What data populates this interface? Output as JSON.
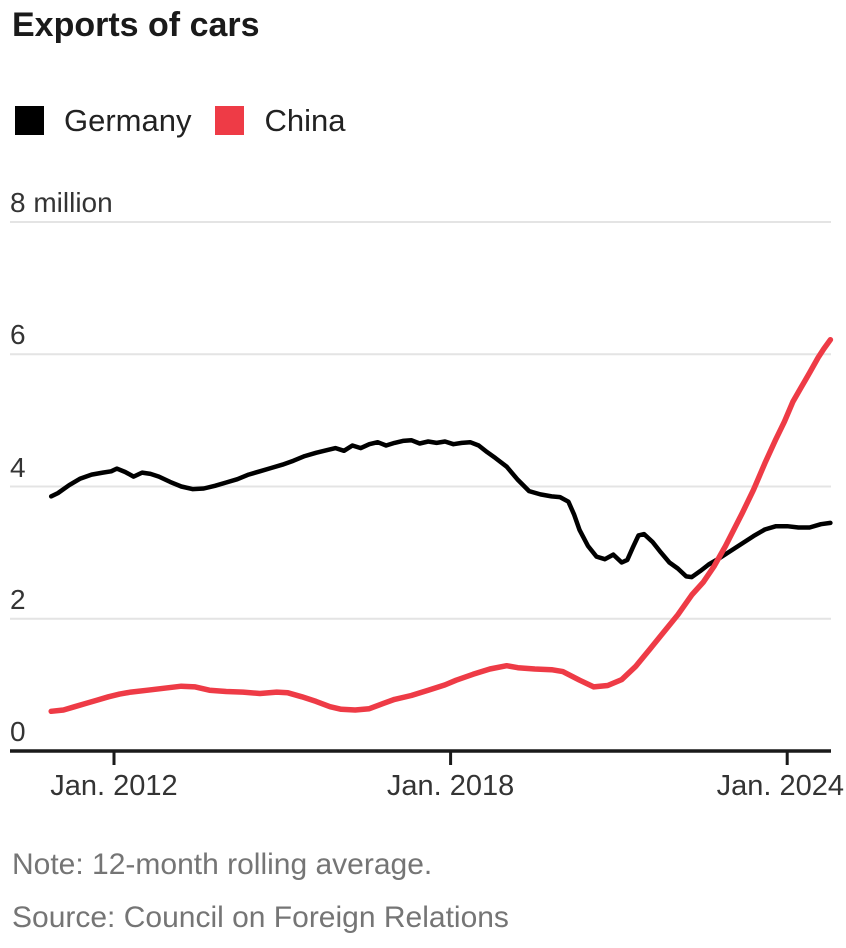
{
  "title": "Exports of cars",
  "legend": {
    "items": [
      {
        "label": "Germany",
        "color": "#000000"
      },
      {
        "label": "China",
        "color": "#ee3b46"
      }
    ]
  },
  "chart_data": {
    "type": "line",
    "title": "Exports of cars",
    "ylabel": "million",
    "ylim": [
      0,
      8
    ],
    "grid": true,
    "legend_position": "top-left",
    "note": "12-month rolling average",
    "y_ticks": [
      {
        "value": 8,
        "label": "8 million"
      },
      {
        "value": 6,
        "label": "6"
      },
      {
        "value": 4,
        "label": "4"
      },
      {
        "value": 2,
        "label": "2"
      },
      {
        "value": 0,
        "label": "0"
      }
    ],
    "x_ticks": [
      {
        "year": 2012,
        "label": "Jan. 2012",
        "align": "center"
      },
      {
        "year": 2018,
        "label": "Jan. 2018",
        "align": "center"
      },
      {
        "year": 2024,
        "label": "Jan. 2024",
        "align": "right"
      }
    ],
    "x_unit": "year (fractional, Jan = .0)",
    "series": [
      {
        "name": "Germany",
        "color": "#000000",
        "stroke_width": 4.5,
        "points": [
          [
            2010.88,
            3.85
          ],
          [
            2011.0,
            3.9
          ],
          [
            2011.2,
            4.02
          ],
          [
            2011.4,
            4.12
          ],
          [
            2011.6,
            4.18
          ],
          [
            2011.8,
            4.21
          ],
          [
            2011.95,
            4.23
          ],
          [
            2012.05,
            4.27
          ],
          [
            2012.2,
            4.22
          ],
          [
            2012.35,
            4.15
          ],
          [
            2012.5,
            4.21
          ],
          [
            2012.65,
            4.19
          ],
          [
            2012.8,
            4.15
          ],
          [
            2013.0,
            4.07
          ],
          [
            2013.2,
            4.0
          ],
          [
            2013.4,
            3.96
          ],
          [
            2013.6,
            3.97
          ],
          [
            2013.8,
            4.01
          ],
          [
            2014.0,
            4.06
          ],
          [
            2014.2,
            4.11
          ],
          [
            2014.4,
            4.18
          ],
          [
            2014.6,
            4.23
          ],
          [
            2014.8,
            4.28
          ],
          [
            2015.0,
            4.33
          ],
          [
            2015.2,
            4.39
          ],
          [
            2015.4,
            4.46
          ],
          [
            2015.6,
            4.51
          ],
          [
            2015.8,
            4.55
          ],
          [
            2015.95,
            4.58
          ],
          [
            2016.1,
            4.54
          ],
          [
            2016.25,
            4.62
          ],
          [
            2016.4,
            4.58
          ],
          [
            2016.55,
            4.64
          ],
          [
            2016.7,
            4.67
          ],
          [
            2016.85,
            4.62
          ],
          [
            2017.0,
            4.66
          ],
          [
            2017.15,
            4.69
          ],
          [
            2017.3,
            4.7
          ],
          [
            2017.45,
            4.65
          ],
          [
            2017.6,
            4.68
          ],
          [
            2017.75,
            4.66
          ],
          [
            2017.9,
            4.68
          ],
          [
            2018.05,
            4.64
          ],
          [
            2018.2,
            4.66
          ],
          [
            2018.35,
            4.67
          ],
          [
            2018.5,
            4.62
          ],
          [
            2018.65,
            4.52
          ],
          [
            2018.8,
            4.43
          ],
          [
            2019.0,
            4.3
          ],
          [
            2019.2,
            4.1
          ],
          [
            2019.4,
            3.93
          ],
          [
            2019.6,
            3.88
          ],
          [
            2019.8,
            3.85
          ],
          [
            2019.95,
            3.84
          ],
          [
            2020.1,
            3.77
          ],
          [
            2020.2,
            3.58
          ],
          [
            2020.3,
            3.34
          ],
          [
            2020.45,
            3.1
          ],
          [
            2020.6,
            2.94
          ],
          [
            2020.75,
            2.9
          ],
          [
            2020.9,
            2.97
          ],
          [
            2021.05,
            2.85
          ],
          [
            2021.15,
            2.89
          ],
          [
            2021.25,
            3.08
          ],
          [
            2021.35,
            3.26
          ],
          [
            2021.45,
            3.28
          ],
          [
            2021.6,
            3.16
          ],
          [
            2021.75,
            3.0
          ],
          [
            2021.9,
            2.85
          ],
          [
            2022.05,
            2.76
          ],
          [
            2022.2,
            2.64
          ],
          [
            2022.3,
            2.63
          ],
          [
            2022.45,
            2.72
          ],
          [
            2022.6,
            2.82
          ],
          [
            2022.8,
            2.92
          ],
          [
            2023.0,
            3.03
          ],
          [
            2023.2,
            3.14
          ],
          [
            2023.4,
            3.25
          ],
          [
            2023.6,
            3.35
          ],
          [
            2023.8,
            3.4
          ],
          [
            2024.0,
            3.4
          ],
          [
            2024.2,
            3.38
          ],
          [
            2024.4,
            3.38
          ],
          [
            2024.6,
            3.43
          ],
          [
            2024.77,
            3.45
          ]
        ]
      },
      {
        "name": "China",
        "color": "#ee3b46",
        "stroke_width": 5.5,
        "points": [
          [
            2010.88,
            0.6
          ],
          [
            2011.1,
            0.62
          ],
          [
            2011.3,
            0.67
          ],
          [
            2011.5,
            0.72
          ],
          [
            2011.7,
            0.77
          ],
          [
            2011.9,
            0.82
          ],
          [
            2012.1,
            0.86
          ],
          [
            2012.3,
            0.89
          ],
          [
            2012.6,
            0.92
          ],
          [
            2012.9,
            0.95
          ],
          [
            2013.2,
            0.98
          ],
          [
            2013.45,
            0.97
          ],
          [
            2013.7,
            0.92
          ],
          [
            2014.0,
            0.9
          ],
          [
            2014.3,
            0.89
          ],
          [
            2014.6,
            0.87
          ],
          [
            2014.9,
            0.89
          ],
          [
            2015.1,
            0.88
          ],
          [
            2015.35,
            0.82
          ],
          [
            2015.6,
            0.75
          ],
          [
            2015.85,
            0.67
          ],
          [
            2016.05,
            0.63
          ],
          [
            2016.3,
            0.62
          ],
          [
            2016.55,
            0.64
          ],
          [
            2016.8,
            0.72
          ],
          [
            2017.0,
            0.78
          ],
          [
            2017.3,
            0.84
          ],
          [
            2017.6,
            0.92
          ],
          [
            2017.9,
            1.0
          ],
          [
            2018.1,
            1.07
          ],
          [
            2018.4,
            1.16
          ],
          [
            2018.7,
            1.24
          ],
          [
            2019.0,
            1.29
          ],
          [
            2019.2,
            1.26
          ],
          [
            2019.5,
            1.24
          ],
          [
            2019.8,
            1.23
          ],
          [
            2020.0,
            1.2
          ],
          [
            2020.3,
            1.07
          ],
          [
            2020.55,
            0.97
          ],
          [
            2020.8,
            0.99
          ],
          [
            2021.05,
            1.08
          ],
          [
            2021.3,
            1.28
          ],
          [
            2021.55,
            1.54
          ],
          [
            2021.8,
            1.8
          ],
          [
            2022.05,
            2.06
          ],
          [
            2022.3,
            2.36
          ],
          [
            2022.5,
            2.55
          ],
          [
            2022.7,
            2.8
          ],
          [
            2022.9,
            3.1
          ],
          [
            2023.05,
            3.35
          ],
          [
            2023.2,
            3.6
          ],
          [
            2023.4,
            3.95
          ],
          [
            2023.6,
            4.35
          ],
          [
            2023.8,
            4.72
          ],
          [
            2023.95,
            4.98
          ],
          [
            2024.1,
            5.28
          ],
          [
            2024.25,
            5.5
          ],
          [
            2024.4,
            5.72
          ],
          [
            2024.55,
            5.95
          ],
          [
            2024.65,
            6.08
          ],
          [
            2024.77,
            6.22
          ]
        ]
      }
    ]
  },
  "colors": {
    "gridline": "#e4e4e4",
    "axis": "#1a1a1a",
    "tick_text": "#343434",
    "footer_text": "#757575"
  },
  "footer": {
    "note": "Note: 12-month rolling average.",
    "source": "Source: Council on Foreign Relations"
  }
}
